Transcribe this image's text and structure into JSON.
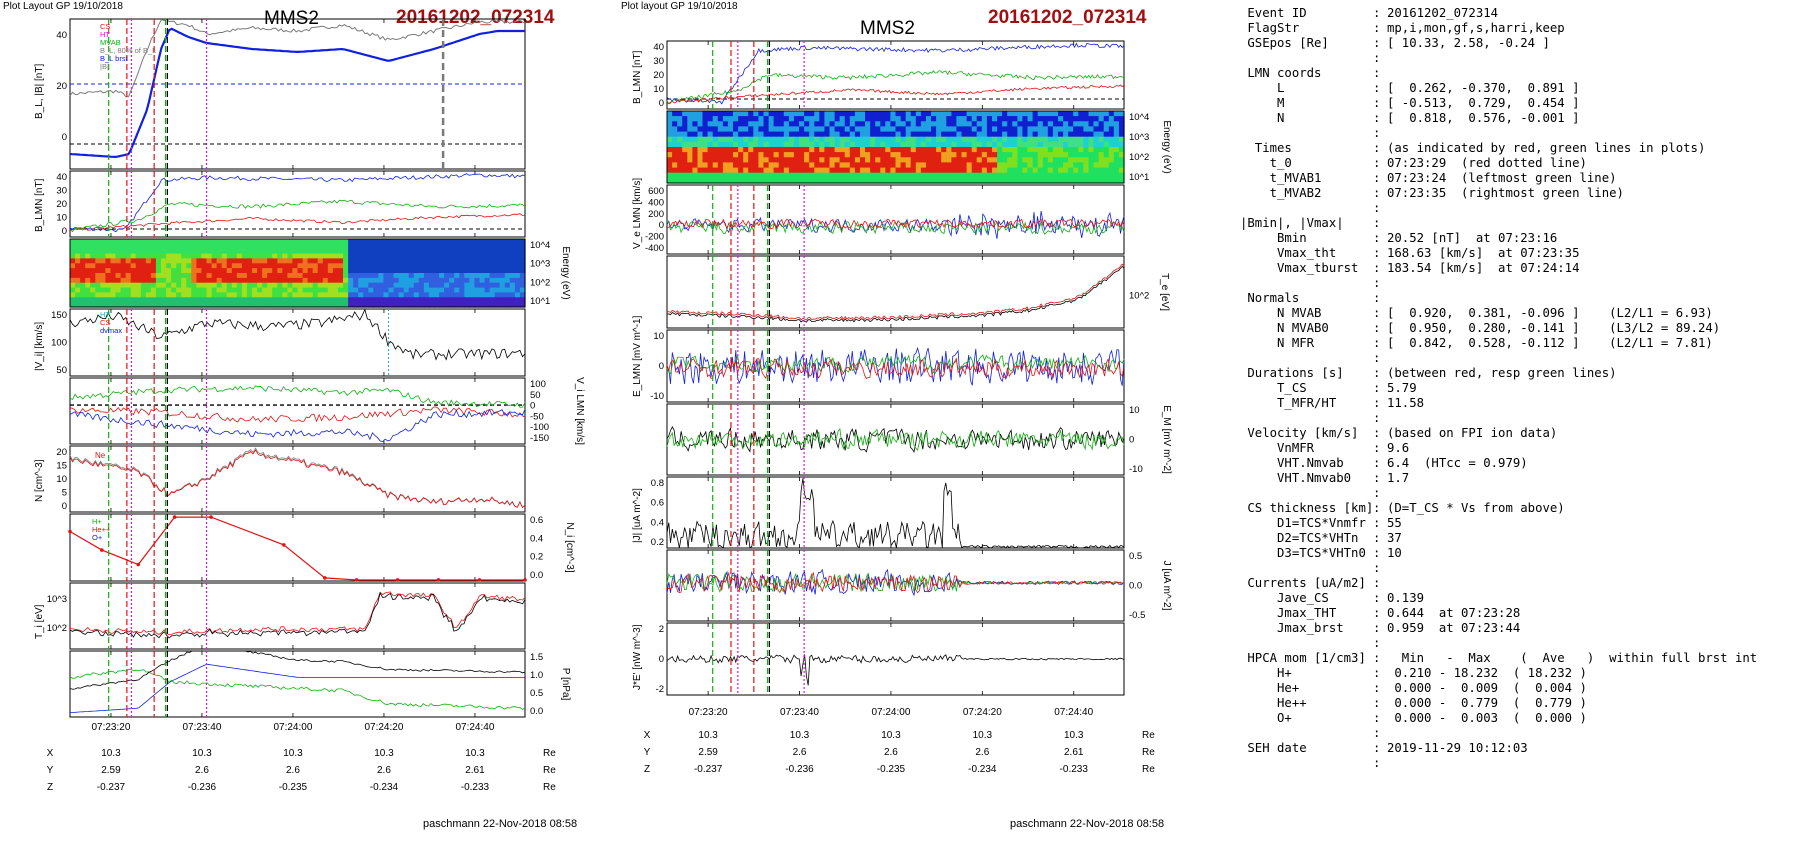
{
  "left_header": {
    "layout_label": "Plot Layout GP 19/10/2018",
    "spacecraft": "MMS2",
    "event": "20161202_072314"
  },
  "mid_header": {
    "layout_label": "Plot layout GP 19/10/2018",
    "spacecraft": "MMS2",
    "event": "20161202_072314"
  },
  "left_footer": "paschmann 22-Nov-2018 08:58",
  "mid_footer": "paschmann 22-Nov-2018 08:58",
  "time_ticks": [
    "07:23:20",
    "07:23:40",
    "07:24:00",
    "07:24:20",
    "07:24:40"
  ],
  "position_table": {
    "rows": [
      {
        "label": "X",
        "values": [
          "10.3",
          "10.3",
          "10.3",
          "10.3",
          "10.3"
        ],
        "unit": "Re"
      },
      {
        "label": "Y",
        "values": [
          "2.59",
          "2.6",
          "2.6",
          "2.6",
          "2.61"
        ],
        "unit": "Re"
      },
      {
        "label": "Z",
        "values": [
          "-0.237",
          "-0.236",
          "-0.235",
          "-0.234",
          "-0.233"
        ],
        "unit": "Re"
      }
    ]
  },
  "colors": {
    "red": "#e81010",
    "green": "#10b010",
    "blue": "#1020e0",
    "black": "#000000",
    "gray": "#7a7a7a",
    "magenta": "#e010e0",
    "cyan": "#20b0e0",
    "event_red": "#a01010"
  },
  "chart_data": [
    {
      "id": "L1",
      "type": "line",
      "ylabel": "B_L, |B| [nT]",
      "ylim": [
        -5,
        45
      ],
      "yticks": [
        "0",
        "20",
        "40"
      ],
      "legend": [
        "CS",
        "HT",
        "MVAB",
        "B_L, 80% of B_L",
        "B_L brst",
        "|B|"
      ],
      "x_range_s": [
        0,
        100
      ],
      "landmarks_s": {
        "t0": 15,
        "t_mvab1": 10,
        "t_mvab2": 21
      },
      "series": [
        {
          "values_at": "0,10,13,17,20,22,26,30,40,50,60,70,80,90,94,100",
          "y": [
            0,
            -1,
            0,
            15,
            35,
            42,
            39,
            37,
            35,
            34,
            35,
            31,
            35,
            40,
            41,
            41
          ]
        },
        {
          "y": [
            20,
            21,
            19,
            35,
            45,
            44,
            43,
            40,
            42,
            41,
            43,
            38,
            41,
            44,
            44,
            44
          ]
        }
      ]
    },
    {
      "id": "L2",
      "type": "line",
      "ylabel": "B_LMN [nT]",
      "ylim": [
        -5,
        45
      ],
      "yticks": [
        "0",
        "10",
        "20",
        "30",
        "40"
      ],
      "legend": [
        "B_L",
        "B_M",
        "B_N"
      ]
    },
    {
      "id": "L3",
      "type": "heatmap",
      "ylabel": "Energy (eV)",
      "yticks": [
        "10^4",
        "10^3",
        "10^2",
        "10^1"
      ]
    },
    {
      "id": "L4",
      "type": "line",
      "ylabel": "|V_i| [km/s]",
      "ylim": [
        0,
        190
      ],
      "yticks": [
        "50",
        "100",
        "150"
      ],
      "legend": [
        "HT",
        "CS",
        "dvmax"
      ]
    },
    {
      "id": "L5",
      "type": "line",
      "ylabel": "V_i LMN [km/s]",
      "ylim": [
        -160,
        110
      ],
      "yticks_right": [
        "100",
        "50",
        "0",
        "-50",
        "-100",
        "-150"
      ],
      "legend": [
        "V_L",
        "V_M",
        "V_N"
      ]
    },
    {
      "id": "L6",
      "type": "line",
      "ylabel": "N [cm^-3]",
      "ylim": [
        0,
        20
      ],
      "yticks": [
        "0",
        "5",
        "10",
        "15",
        "20"
      ],
      "legend": [
        "Ne"
      ]
    },
    {
      "id": "L7",
      "type": "line",
      "ylabel": "N_i [cm^-3]",
      "ylim": [
        0,
        0.65
      ],
      "yticks_right": [
        "0.6",
        "0.4",
        "0.2",
        "0.0"
      ],
      "legend": [
        "H+",
        "He++",
        "O+"
      ],
      "x_s": [
        0,
        7,
        15,
        23,
        31,
        47,
        56,
        63,
        72,
        81,
        90,
        100
      ],
      "y": [
        0.48,
        0.3,
        0.16,
        0.62,
        0.62,
        0.35,
        0.03,
        0.01,
        0.01,
        0.01,
        0.01,
        0.01
      ]
    },
    {
      "id": "L8",
      "type": "line",
      "ylabel": "T_i [eV]",
      "yticks": [
        "10^3",
        "10^2"
      ],
      "legend": [
        "T_par",
        "T_perp"
      ]
    },
    {
      "id": "L9",
      "type": "line",
      "ylabel": "P [nPa]",
      "ylim": [
        0,
        1.5
      ],
      "yticks_right": [
        "1.5",
        "1.0",
        "0.5",
        "0.0"
      ],
      "legend": [
        "P_i",
        "P_B",
        "P_tot"
      ]
    },
    {
      "id": "M1",
      "type": "line",
      "ylabel": "B_LMN [nT]",
      "ylim": [
        -5,
        45
      ],
      "yticks": [
        "0",
        "10",
        "20",
        "30",
        "40"
      ],
      "legend": [
        "B_L",
        "B_M",
        "B_N"
      ]
    },
    {
      "id": "M2",
      "type": "heatmap",
      "ylabel": "Energy (eV)",
      "yticks": [
        "10^4",
        "10^3",
        "10^2",
        "10^1"
      ]
    },
    {
      "id": "M3",
      "type": "line",
      "ylabel": "V_e LMN [km/s]",
      "ylim": [
        -500,
        700
      ],
      "yticks": [
        "600",
        "400",
        "200",
        "0",
        "-200",
        "-400"
      ],
      "legend": [
        "V_L"
      ]
    },
    {
      "id": "M4",
      "type": "line",
      "ylabel": "T_e [eV]",
      "yticks_right": [
        "10^2"
      ],
      "legend": [
        "T_par",
        "T_perp"
      ]
    },
    {
      "id": "M5",
      "type": "line",
      "ylabel": "E_LMN [mV m^-1]",
      "ylim": [
        -15,
        15
      ],
      "yticks": [
        "10",
        "0",
        "-10"
      ],
      "legend": [
        "E_L",
        "E_M",
        "E_N"
      ]
    },
    {
      "id": "M6",
      "type": "line",
      "ylabel": "E_M [mV m^-2]",
      "ylim": [
        -15,
        15
      ],
      "yticks_right": [
        "10",
        "0",
        "-10"
      ],
      "legend": [
        "(VexB)_M",
        "E_M"
      ]
    },
    {
      "id": "M7",
      "type": "line",
      "ylabel": "|J| [uA m^-2]",
      "ylim": [
        0,
        0.9
      ],
      "yticks": [
        "0.8",
        "0.6",
        "0.4",
        "0.2"
      ],
      "legend": [
        "|J|"
      ]
    },
    {
      "id": "M8",
      "type": "line",
      "ylabel": "J [uA m^-2]",
      "ylim": [
        -0.7,
        0.6
      ],
      "yticks_right": [
        "0.5",
        "0.0",
        "-0.5"
      ],
      "legend": [
        "J"
      ]
    },
    {
      "id": "M9",
      "type": "line",
      "ylabel": "J*E' [nW m^-3]",
      "ylim": [
        -3,
        3
      ],
      "yticks": [
        "2",
        "0",
        "-2"
      ],
      "legend": [
        "J*E'"
      ]
    }
  ],
  "info": {
    "rows": [
      {
        "label": " Event ID",
        "sep": ":",
        "value": "20161202_072314"
      },
      {
        "label": " FlagStr",
        "sep": ":",
        "value": "mp,i,mon,gf,s,harri,keep"
      },
      {
        "label": " GSEpos [Re]",
        "sep": ":",
        "value": "[ 10.33, 2.58, -0.24 ]"
      },
      {
        "label": "",
        "sep": ":",
        "value": ""
      },
      {
        "label": " LMN coords",
        "sep": ":",
        "value": ""
      },
      {
        "label": "     L",
        "sep": ":",
        "value": "[  0.262, -0.370,  0.891 ]"
      },
      {
        "label": "     M",
        "sep": ":",
        "value": "[ -0.513,  0.729,  0.454 ]"
      },
      {
        "label": "     N",
        "sep": ":",
        "value": "[  0.818,  0.576, -0.001 ]"
      },
      {
        "label": "",
        "sep": ":",
        "value": ""
      },
      {
        "label": "  Times",
        "sep": ":",
        "value": "(as indicated by red, green lines in plots)"
      },
      {
        "label": "    t_0",
        "sep": ":",
        "value": "07:23:29  (red dotted line)"
      },
      {
        "label": "    t_MVAB1",
        "sep": ":",
        "value": "07:23:24  (leftmost green line)"
      },
      {
        "label": "    t_MVAB2",
        "sep": ":",
        "value": "07:23:35  (rightmost green line)"
      },
      {
        "label": "",
        "sep": ":",
        "value": ""
      },
      {
        "label": "|Bmin|, |Vmax|",
        "sep": ":",
        "value": ""
      },
      {
        "label": "     Bmin",
        "sep": ":",
        "value": "20.52 [nT]  at 07:23:16"
      },
      {
        "label": "     Vmax_tht",
        "sep": ":",
        "value": "168.63 [km/s]  at 07:23:35"
      },
      {
        "label": "     Vmax_tburst",
        "sep": ":",
        "value": "183.54 [km/s]  at 07:24:14"
      },
      {
        "label": "",
        "sep": ":",
        "value": ""
      },
      {
        "label": " Normals",
        "sep": ":",
        "value": ""
      },
      {
        "label": "     N MVAB",
        "sep": ":",
        "value": "[  0.920,  0.381, -0.096 ]    (L2/L1 = 6.93)"
      },
      {
        "label": "     N MVAB0",
        "sep": ":",
        "value": "[  0.950,  0.280, -0.141 ]    (L3/L2 = 89.24)"
      },
      {
        "label": "     N MFR",
        "sep": ":",
        "value": "[  0.842,  0.528, -0.112 ]    (L2/L1 = 7.81)"
      },
      {
        "label": "",
        "sep": ":",
        "value": ""
      },
      {
        "label": " Durations [s]",
        "sep": ":",
        "value": "(between red, resp green lines)"
      },
      {
        "label": "     T_CS",
        "sep": ":",
        "value": "5.79"
      },
      {
        "label": "     T_MFR/HT",
        "sep": ":",
        "value": "11.58"
      },
      {
        "label": "",
        "sep": ":",
        "value": ""
      },
      {
        "label": " Velocity [km/s]",
        "sep": ":",
        "value": "(based on FPI ion data)"
      },
      {
        "label": "     VnMFR",
        "sep": ":",
        "value": "9.6"
      },
      {
        "label": "     VHT.Nmvab",
        "sep": ":",
        "value": "6.4  (HTcc = 0.979)"
      },
      {
        "label": "     VHT.Nmvab0",
        "sep": ":",
        "value": "1.7"
      },
      {
        "label": "",
        "sep": ":",
        "value": ""
      },
      {
        "label": " CS thickness [km]",
        "sep": ":",
        "value": "(D=T_CS * Vs from above)"
      },
      {
        "label": "     D1=TCS*Vnmfr",
        "sep": ":",
        "value": "55"
      },
      {
        "label": "     D2=TCS*VHTn",
        "sep": ":",
        "value": "37"
      },
      {
        "label": "     D3=TCS*VHTn0",
        "sep": ":",
        "value": "10"
      },
      {
        "label": "",
        "sep": ":",
        "value": ""
      },
      {
        "label": " Currents [uA/m2]",
        "sep": ":",
        "value": ""
      },
      {
        "label": "     Jave_CS",
        "sep": ":",
        "value": "0.139"
      },
      {
        "label": "     Jmax_THT",
        "sep": ":",
        "value": "0.644  at 07:23:28"
      },
      {
        "label": "     Jmax_brst",
        "sep": ":",
        "value": "0.959  at 07:23:44"
      },
      {
        "label": "",
        "sep": ":",
        "value": ""
      },
      {
        "label": " HPCA mom [1/cm3]",
        "sep": ":",
        "value": "  Min   -  Max    (  Ave   )  within full brst int"
      },
      {
        "label": "     H+",
        "sep": ":",
        "value": " 0.210 - 18.232  ( 18.232 )"
      },
      {
        "label": "     He+",
        "sep": ":",
        "value": " 0.000 -  0.009  (  0.004 )"
      },
      {
        "label": "     He++",
        "sep": ":",
        "value": " 0.000 -  0.779  (  0.779 )"
      },
      {
        "label": "     O+",
        "sep": ":",
        "value": " 0.000 -  0.003  (  0.000 )"
      },
      {
        "label": "",
        "sep": ":",
        "value": ""
      },
      {
        "label": " SEH date",
        "sep": ":",
        "value": "2019-11-29 10:12:03"
      },
      {
        "label": "",
        "sep": ":",
        "value": ""
      }
    ]
  }
}
